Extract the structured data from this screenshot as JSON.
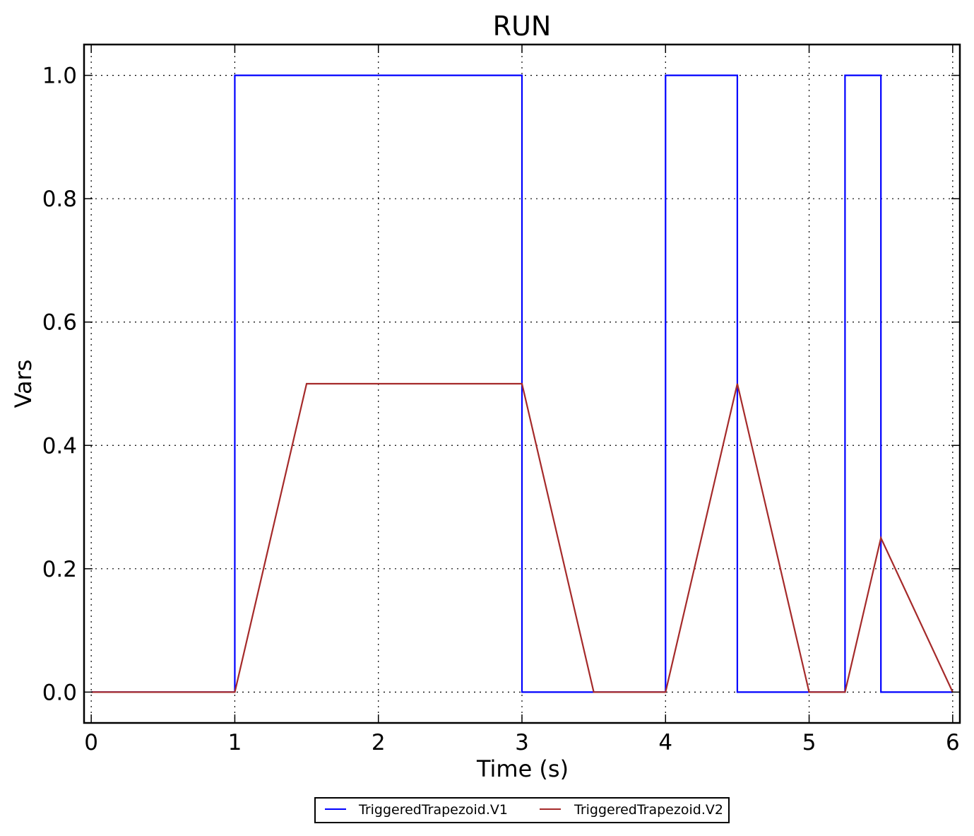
{
  "chart_data": {
    "type": "line",
    "title": "RUN",
    "xlabel": "Time (s)",
    "ylabel": "Vars",
    "xlim": [
      -0.05,
      6.05
    ],
    "ylim": [
      -0.05,
      1.05
    ],
    "grid": true,
    "legend_position": "below",
    "x_ticks": [
      0,
      1,
      2,
      3,
      4,
      5,
      6
    ],
    "x_tick_labels": [
      "0",
      "1",
      "2",
      "3",
      "4",
      "5",
      "6"
    ],
    "y_ticks": [
      0.0,
      0.2,
      0.4,
      0.6,
      0.8,
      1.0
    ],
    "y_tick_labels": [
      "0.0",
      "0.2",
      "0.4",
      "0.6",
      "0.8",
      "1.0"
    ],
    "series": [
      {
        "name": "TriggeredTrapezoid.V1",
        "color": "#0000ff",
        "points": [
          [
            0,
            0
          ],
          [
            1,
            0
          ],
          [
            1,
            1
          ],
          [
            3,
            1
          ],
          [
            3,
            0
          ],
          [
            4,
            0
          ],
          [
            4,
            1
          ],
          [
            4.5,
            1
          ],
          [
            4.5,
            0
          ],
          [
            5.25,
            0
          ],
          [
            5.25,
            1
          ],
          [
            5.5,
            1
          ],
          [
            5.5,
            0
          ],
          [
            6,
            0
          ]
        ]
      },
      {
        "name": "TriggeredTrapezoid.V2",
        "color": "#a52a2a",
        "points": [
          [
            0,
            0
          ],
          [
            1,
            0
          ],
          [
            1.5,
            0.5
          ],
          [
            3,
            0.5
          ],
          [
            3.5,
            0
          ],
          [
            4,
            0
          ],
          [
            4.5,
            0.5
          ],
          [
            5,
            0
          ],
          [
            5.25,
            0
          ],
          [
            5.5,
            0.25
          ],
          [
            6,
            0
          ]
        ]
      }
    ]
  }
}
